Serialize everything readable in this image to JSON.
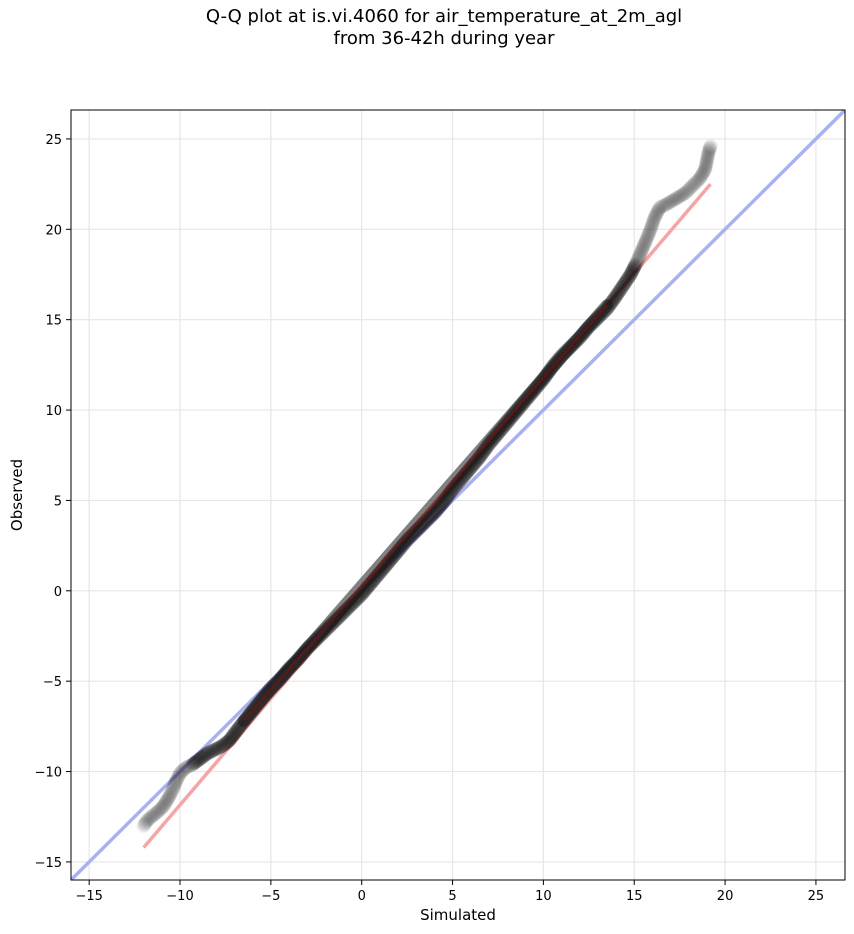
{
  "chart_data": {
    "type": "scatter",
    "title_line1": "Q-Q plot at is.vi.4060 for air_temperature_at_2m_agl",
    "title_line2": "from 36-42h during year",
    "xlabel": "Simulated",
    "ylabel": "Observed",
    "xlim": [
      -16,
      26.6
    ],
    "ylim": [
      -16,
      26.6
    ],
    "xticks": [
      -15,
      -10,
      -5,
      0,
      5,
      10,
      15,
      20,
      25
    ],
    "yticks": [
      -15,
      -10,
      -5,
      0,
      5,
      10,
      15,
      20,
      25
    ],
    "xtick_labels": [
      "−15",
      "−10",
      "−5",
      "0",
      "5",
      "10",
      "15",
      "20",
      "25"
    ],
    "ytick_labels": [
      "−15",
      "−10",
      "−5",
      "0",
      "5",
      "10",
      "15",
      "20",
      "25"
    ],
    "grid": true,
    "reference_lines": [
      {
        "kind": "identity",
        "color": "#aab0f2",
        "x": [
          -16,
          26.6
        ],
        "y": [
          -16,
          26.6
        ]
      },
      {
        "kind": "fit",
        "color": "#f4a6a6",
        "x": [
          -12,
          19.2
        ],
        "y": [
          -14.2,
          22.5
        ]
      }
    ],
    "core_line": {
      "x": [
        -6.5,
        13.5
      ],
      "y": [
        -7.2,
        15.8
      ]
    },
    "quantiles": [
      {
        "x": -12.0,
        "y": -13.0
      },
      {
        "x": -11.8,
        "y": -12.7
      },
      {
        "x": -11.2,
        "y": -12.2
      },
      {
        "x": -10.9,
        "y": -11.9
      },
      {
        "x": -10.6,
        "y": -11.4
      },
      {
        "x": -10.4,
        "y": -11.0
      },
      {
        "x": -10.2,
        "y": -10.5
      },
      {
        "x": -10.0,
        "y": -10.1
      },
      {
        "x": -9.7,
        "y": -9.8
      },
      {
        "x": -9.3,
        "y": -9.6
      },
      {
        "x": -8.9,
        "y": -9.3
      },
      {
        "x": -8.5,
        "y": -9.0
      },
      {
        "x": -8.1,
        "y": -8.8
      },
      {
        "x": -7.7,
        "y": -8.6
      },
      {
        "x": -7.3,
        "y": -8.3
      },
      {
        "x": -7.0,
        "y": -7.9
      },
      {
        "x": -6.7,
        "y": -7.5
      },
      {
        "x": -6.3,
        "y": -7.0
      },
      {
        "x": -5.9,
        "y": -6.5
      },
      {
        "x": -5.5,
        "y": -6.0
      },
      {
        "x": -5.0,
        "y": -5.4
      },
      {
        "x": -4.5,
        "y": -4.9
      },
      {
        "x": -4.0,
        "y": -4.3
      },
      {
        "x": -3.5,
        "y": -3.8
      },
      {
        "x": -3.0,
        "y": -3.2
      },
      {
        "x": -2.5,
        "y": -2.7
      },
      {
        "x": -2.0,
        "y": -2.2
      },
      {
        "x": -1.5,
        "y": -1.7
      },
      {
        "x": -1.0,
        "y": -1.2
      },
      {
        "x": -0.5,
        "y": -0.7
      },
      {
        "x": 0.0,
        "y": -0.2
      },
      {
        "x": 0.5,
        "y": 0.4
      },
      {
        "x": 1.0,
        "y": 1.0
      },
      {
        "x": 1.5,
        "y": 1.6
      },
      {
        "x": 2.0,
        "y": 2.2
      },
      {
        "x": 2.5,
        "y": 2.8
      },
      {
        "x": 3.0,
        "y": 3.3
      },
      {
        "x": 3.5,
        "y": 3.8
      },
      {
        "x": 4.0,
        "y": 4.3
      },
      {
        "x": 4.5,
        "y": 4.9
      },
      {
        "x": 5.0,
        "y": 5.6
      },
      {
        "x": 5.5,
        "y": 6.2
      },
      {
        "x": 6.0,
        "y": 6.8
      },
      {
        "x": 6.5,
        "y": 7.4
      },
      {
        "x": 7.0,
        "y": 8.1
      },
      {
        "x": 7.5,
        "y": 8.7
      },
      {
        "x": 8.0,
        "y": 9.3
      },
      {
        "x": 8.5,
        "y": 9.9
      },
      {
        "x": 9.0,
        "y": 10.5
      },
      {
        "x": 9.5,
        "y": 11.1
      },
      {
        "x": 10.0,
        "y": 11.7
      },
      {
        "x": 10.5,
        "y": 12.4
      },
      {
        "x": 11.0,
        "y": 13.0
      },
      {
        "x": 11.5,
        "y": 13.5
      },
      {
        "x": 12.0,
        "y": 14.0
      },
      {
        "x": 12.5,
        "y": 14.6
      },
      {
        "x": 13.0,
        "y": 15.1
      },
      {
        "x": 13.5,
        "y": 15.6
      },
      {
        "x": 14.0,
        "y": 16.3
      },
      {
        "x": 14.4,
        "y": 16.9
      },
      {
        "x": 14.8,
        "y": 17.5
      },
      {
        "x": 15.1,
        "y": 18.1
      },
      {
        "x": 15.4,
        "y": 18.8
      },
      {
        "x": 15.7,
        "y": 19.5
      },
      {
        "x": 15.9,
        "y": 20.0
      },
      {
        "x": 16.1,
        "y": 20.6
      },
      {
        "x": 16.4,
        "y": 21.2
      },
      {
        "x": 16.8,
        "y": 21.4
      },
      {
        "x": 17.3,
        "y": 21.7
      },
      {
        "x": 17.8,
        "y": 22.0
      },
      {
        "x": 18.2,
        "y": 22.4
      },
      {
        "x": 18.6,
        "y": 22.8
      },
      {
        "x": 18.9,
        "y": 23.3
      },
      {
        "x": 19.1,
        "y": 24.3
      },
      {
        "x": 19.2,
        "y": 24.6
      }
    ]
  }
}
